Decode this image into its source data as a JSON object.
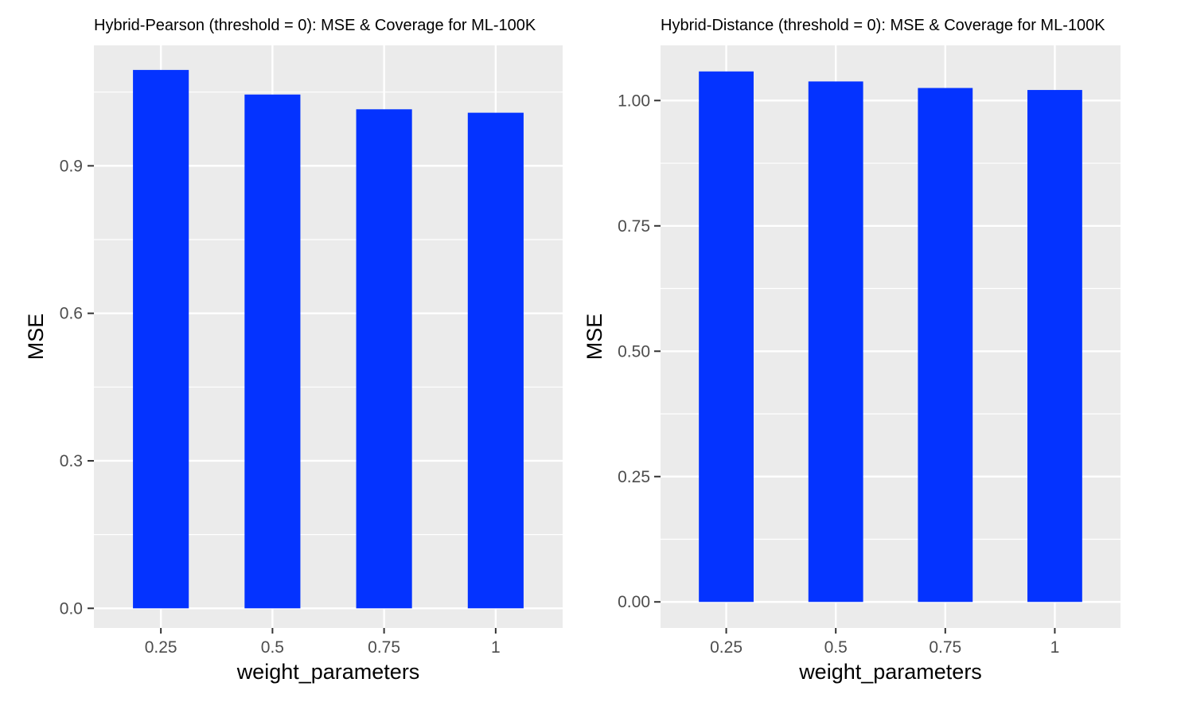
{
  "chart_data": [
    {
      "type": "bar",
      "title": "Hybrid-Pearson (threshold = 0): MSE & Coverage for ML-100K",
      "xlabel": "weight_parameters",
      "ylabel": "MSE",
      "categories": [
        "0.25",
        "0.5",
        "0.75",
        "1"
      ],
      "values": [
        1.095,
        1.045,
        1.015,
        1.008
      ],
      "ylim": [
        -0.04,
        1.145
      ],
      "yticks": [
        0.0,
        0.3,
        0.6,
        0.9
      ],
      "ytick_labels": [
        "0.0",
        "0.3",
        "0.6",
        "0.9"
      ],
      "bar_color": "#0433ff",
      "panel_color": "#ebebeb",
      "grid": true,
      "legend": "none"
    },
    {
      "type": "bar",
      "title": "Hybrid-Distance (threshold = 0): MSE & Coverage for ML-100K",
      "xlabel": "weight_parameters",
      "ylabel": "MSE",
      "categories": [
        "0.25",
        "0.5",
        "0.75",
        "1"
      ],
      "values": [
        1.058,
        1.038,
        1.025,
        1.021
      ],
      "ylim": [
        -0.052,
        1.11
      ],
      "yticks": [
        0.0,
        0.25,
        0.5,
        0.75,
        1.0
      ],
      "ytick_labels": [
        "0.00",
        "0.25",
        "0.50",
        "0.75",
        "1.00"
      ],
      "bar_color": "#0433ff",
      "panel_color": "#ebebeb",
      "grid": true,
      "legend": "none"
    }
  ]
}
